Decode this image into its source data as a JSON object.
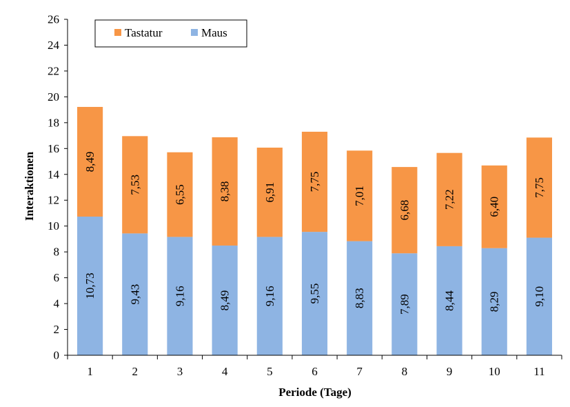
{
  "chart_data": {
    "type": "bar",
    "stacked": true,
    "categories": [
      "1",
      "2",
      "3",
      "4",
      "5",
      "6",
      "7",
      "8",
      "9",
      "10",
      "11"
    ],
    "series": [
      {
        "name": "Maus",
        "color": "#8eb4e3",
        "values": [
          10.73,
          9.43,
          9.16,
          8.49,
          9.16,
          9.55,
          8.83,
          7.89,
          8.44,
          8.29,
          9.1
        ],
        "labels": [
          "10,73",
          "9,43",
          "9,16",
          "8,49",
          "9,16",
          "9,55",
          "8,83",
          "7,89",
          "8,44",
          "8,29",
          "9,10"
        ]
      },
      {
        "name": "Tastatur",
        "color": "#f79646",
        "values": [
          8.49,
          7.53,
          6.55,
          8.38,
          6.91,
          7.75,
          7.01,
          6.68,
          7.22,
          6.4,
          7.75
        ],
        "labels": [
          "8,49",
          "7,53",
          "6,55",
          "8,38",
          "6,91",
          "7,75",
          "7,01",
          "6,68",
          "7,22",
          "6,40",
          "7,75"
        ]
      }
    ],
    "xlabel": "Periode (Tage)",
    "ylabel": "Interaktionen",
    "ylim": [
      0,
      26
    ],
    "yticks": [
      "0",
      "2",
      "4",
      "6",
      "8",
      "10",
      "12",
      "14",
      "16",
      "18",
      "20",
      "22",
      "24",
      "26"
    ],
    "grid": false,
    "legend": {
      "position": "top-left",
      "entries": [
        "Tastatur",
        "Maus"
      ]
    }
  }
}
